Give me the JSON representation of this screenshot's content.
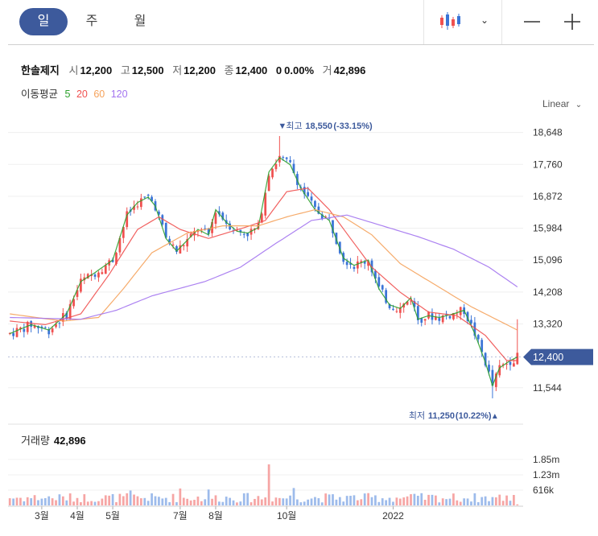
{
  "tabs": [
    {
      "label": "일",
      "active": true
    },
    {
      "label": "주",
      "active": false
    },
    {
      "label": "월",
      "active": false
    }
  ],
  "colors": {
    "up": "#f0504f",
    "down": "#3a74d6",
    "ma5": "#2ca02c",
    "ma20": "#f0504f",
    "ma60": "#f5a25b",
    "ma120": "#a374f0",
    "accent": "#3d5a9c",
    "price_tag": "#3d5a9c"
  },
  "icons": {
    "chart_type": "candlestick-chart-icon",
    "chevron": "chevron-down-icon",
    "zoom_out": "minus-icon",
    "zoom_in": "plus-icon"
  },
  "info": {
    "name": "한솔제지",
    "open_label": "시",
    "open": "12,200",
    "high_label": "고",
    "high": "12,500",
    "low_label": "저",
    "low": "12,200",
    "close_label": "종",
    "close": "12,400",
    "change": "0",
    "change_pct": "0.00%",
    "volume_label": "거",
    "volume": "42,896"
  },
  "ma_label": "이동평균",
  "ma_periods": [
    "5",
    "20",
    "60",
    "120"
  ],
  "scale_label": "Linear",
  "volume_title": {
    "label": "거래량",
    "value": "42,896"
  },
  "chart_data": {
    "type": "candlestick",
    "price_axis": {
      "ticks": [
        "18,648",
        "17,760",
        "16,872",
        "15,984",
        "15,096",
        "14,208",
        "13,320",
        "11,544"
      ],
      "ylim": [
        10800,
        19200
      ]
    },
    "volume_axis": {
      "ticks": [
        "1.85m",
        "1.23m",
        "616k"
      ],
      "ylim": [
        0,
        2200000
      ]
    },
    "x_ticks": [
      "3월",
      "4월",
      "5월",
      "7월",
      "8월",
      "10월",
      "2022"
    ],
    "current_price": {
      "label": "12,400",
      "value": 12400
    },
    "max_marker": {
      "prefix": "최고",
      "value": "18,550",
      "pct": "(-33.15%)",
      "price": 18550
    },
    "min_marker": {
      "prefix": "최저",
      "value": "11,250",
      "pct": "(10.22%)",
      "price": 11250
    },
    "anchors": [
      [
        0,
        13050
      ],
      [
        6,
        13300
      ],
      [
        11,
        13150
      ],
      [
        16,
        13600
      ],
      [
        20,
        14500
      ],
      [
        24,
        14750
      ],
      [
        29,
        15100
      ],
      [
        33,
        16350
      ],
      [
        36,
        16700
      ],
      [
        39,
        16850
      ],
      [
        41,
        16600
      ],
      [
        44,
        15700
      ],
      [
        47,
        15350
      ],
      [
        50,
        15650
      ],
      [
        53,
        15950
      ],
      [
        56,
        15800
      ],
      [
        58,
        16500
      ],
      [
        61,
        16150
      ],
      [
        64,
        15900
      ],
      [
        67,
        15850
      ],
      [
        70,
        16000
      ],
      [
        73,
        17550
      ],
      [
        76,
        17950
      ],
      [
        79,
        17750
      ],
      [
        82,
        17100
      ],
      [
        86,
        16500
      ],
      [
        90,
        16200
      ],
      [
        94,
        15150
      ],
      [
        97,
        14950
      ],
      [
        101,
        15100
      ],
      [
        104,
        14300
      ],
      [
        107,
        13850
      ],
      [
        110,
        13750
      ],
      [
        113,
        14050
      ],
      [
        115,
        13450
      ],
      [
        118,
        13550
      ],
      [
        121,
        13500
      ],
      [
        125,
        13600
      ],
      [
        128,
        13700
      ],
      [
        131,
        13050
      ],
      [
        134,
        12250
      ],
      [
        136,
        11600
      ],
      [
        138,
        12100
      ],
      [
        141,
        12300
      ],
      [
        143,
        12400
      ]
    ],
    "moving_averages": [
      {
        "period": "5",
        "points": [
          [
            0,
            13050
          ],
          [
            6,
            13300
          ],
          [
            11,
            13150
          ],
          [
            16,
            13600
          ],
          [
            20,
            14500
          ],
          [
            24,
            14750
          ],
          [
            29,
            15100
          ],
          [
            33,
            16350
          ],
          [
            36,
            16700
          ],
          [
            39,
            16850
          ],
          [
            41,
            16600
          ],
          [
            44,
            15700
          ],
          [
            47,
            15350
          ],
          [
            50,
            15650
          ],
          [
            53,
            15950
          ],
          [
            56,
            15800
          ],
          [
            58,
            16500
          ],
          [
            61,
            16150
          ],
          [
            64,
            15900
          ],
          [
            67,
            15850
          ],
          [
            70,
            16000
          ],
          [
            73,
            17550
          ],
          [
            76,
            17950
          ],
          [
            79,
            17750
          ],
          [
            82,
            17100
          ],
          [
            86,
            16500
          ],
          [
            90,
            16200
          ],
          [
            94,
            15150
          ],
          [
            97,
            14950
          ],
          [
            101,
            15100
          ],
          [
            104,
            14300
          ],
          [
            107,
            13850
          ],
          [
            110,
            13750
          ],
          [
            113,
            14050
          ],
          [
            115,
            13450
          ],
          [
            118,
            13550
          ],
          [
            121,
            13500
          ],
          [
            125,
            13600
          ],
          [
            128,
            13700
          ],
          [
            131,
            13050
          ],
          [
            134,
            12250
          ],
          [
            136,
            11600
          ],
          [
            138,
            12100
          ],
          [
            141,
            12300
          ],
          [
            143,
            12400
          ]
        ]
      },
      {
        "period": "20",
        "points": [
          [
            0,
            13400
          ],
          [
            10,
            13300
          ],
          [
            20,
            13600
          ],
          [
            28,
            14700
          ],
          [
            36,
            15950
          ],
          [
            42,
            16300
          ],
          [
            48,
            15950
          ],
          [
            56,
            15700
          ],
          [
            66,
            16000
          ],
          [
            72,
            16200
          ],
          [
            78,
            17000
          ],
          [
            84,
            17100
          ],
          [
            90,
            16500
          ],
          [
            96,
            15700
          ],
          [
            102,
            14900
          ],
          [
            110,
            14200
          ],
          [
            118,
            13650
          ],
          [
            126,
            13550
          ],
          [
            134,
            13000
          ],
          [
            140,
            12300
          ],
          [
            143,
            12300
          ]
        ]
      },
      {
        "period": "60",
        "points": [
          [
            0,
            13600
          ],
          [
            15,
            13400
          ],
          [
            25,
            13500
          ],
          [
            32,
            14300
          ],
          [
            40,
            15300
          ],
          [
            50,
            15850
          ],
          [
            60,
            16050
          ],
          [
            70,
            16050
          ],
          [
            78,
            16300
          ],
          [
            86,
            16500
          ],
          [
            94,
            16300
          ],
          [
            102,
            15800
          ],
          [
            110,
            15000
          ],
          [
            120,
            14400
          ],
          [
            130,
            13800
          ],
          [
            143,
            13150
          ]
        ]
      },
      {
        "period": "120",
        "points": [
          [
            0,
            13500
          ],
          [
            20,
            13450
          ],
          [
            30,
            13700
          ],
          [
            40,
            14100
          ],
          [
            55,
            14500
          ],
          [
            65,
            14900
          ],
          [
            74,
            15500
          ],
          [
            85,
            16200
          ],
          [
            95,
            16350
          ],
          [
            105,
            16050
          ],
          [
            115,
            15750
          ],
          [
            125,
            15400
          ],
          [
            135,
            14900
          ],
          [
            143,
            14350
          ]
        ]
      }
    ]
  }
}
